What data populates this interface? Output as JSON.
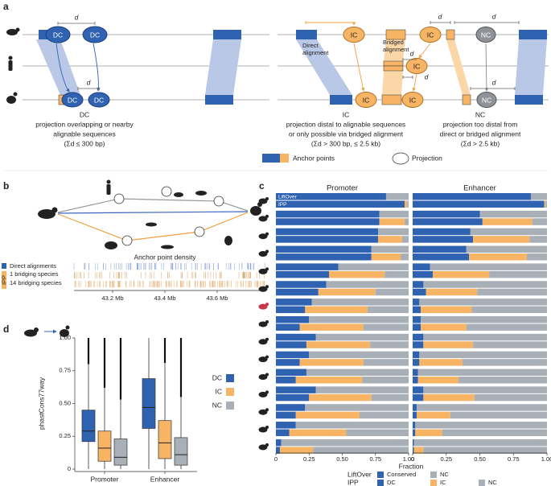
{
  "figure": {
    "panel_a": {
      "label": "a",
      "distance": "d",
      "dc": "DC",
      "ic": "IC",
      "nc": "NC",
      "direct_alignment": [
        "Direct",
        "alignment"
      ],
      "bridged_alignment": [
        "Bridged",
        "alignment"
      ],
      "captions": [
        {
          "title": "DC",
          "lines": [
            "projection overlapping or nearby",
            "alignable sequences",
            "(Σd ≤ 300 bp)"
          ]
        },
        {
          "title": "IC",
          "lines": [
            "projection distal to alignable sequences",
            "or only possible via bridged alignment",
            "(Σd > 300 bp, ≤ 2.5 kb)"
          ]
        },
        {
          "title": "NC",
          "lines": [
            "projection too distal from",
            "direct or bridged alignment",
            "(Σd > 2.5 kb)"
          ]
        }
      ],
      "legend": [
        "Anchor points",
        "Projection"
      ]
    },
    "panel_b": {
      "label": "b",
      "density_title": "Anchor point density",
      "tracks": [
        "Direct alignments",
        "1 bridging species",
        "14 bridging species"
      ],
      "ipp": "IPP",
      "positions": [
        "43.2 Mb",
        "43.4 Mb",
        "43.6 Mb"
      ]
    },
    "panel_c_label": "c",
    "panel_d_label": "d"
  },
  "chart_data": [
    {
      "type": "stacked_bar",
      "xlabel": "Fraction",
      "xlim": [
        0,
        1
      ],
      "xticks": [
        0,
        0.25,
        {
          "value": 0.5,
          "label": "0.50"
        },
        0.75,
        {
          "value": 1,
          "label": "1.00"
        }
      ],
      "facets": [
        {
          "title": "Promoter",
          "stacks": [
            {
              "name": "LiftOver",
              "series": [
                {
                  "name": "Conserved",
                  "color": "#2f62b0",
                  "values": [
                    0.83,
                    0.78,
                    0.77,
                    0.72,
                    0.47,
                    0.38,
                    0.27,
                    0.25,
                    0.3,
                    0.25,
                    0.23,
                    0.3,
                    0.22,
                    0.15,
                    0.04
                  ]
                },
                {
                  "name": "NC",
                  "color": "#a9afb7",
                  "values": [
                    0.17,
                    0.22,
                    0.23,
                    0.28,
                    0.53,
                    0.62,
                    0.73,
                    0.75,
                    0.7,
                    0.75,
                    0.77,
                    0.7,
                    0.78,
                    0.85,
                    0.96
                  ]
                }
              ]
            },
            {
              "name": "IPP",
              "series": [
                {
                  "name": "DC",
                  "color": "#2f62b0",
                  "values": [
                    0.97,
                    0.78,
                    0.77,
                    0.72,
                    0.4,
                    0.32,
                    0.22,
                    0.18,
                    0.23,
                    0.18,
                    0.15,
                    0.25,
                    0.15,
                    0.1,
                    0.03
                  ]
                },
                {
                  "name": "IC",
                  "color": "#f6b464",
                  "values": [
                    0.02,
                    0.19,
                    0.18,
                    0.22,
                    0.42,
                    0.43,
                    0.47,
                    0.48,
                    0.48,
                    0.48,
                    0.5,
                    0.47,
                    0.48,
                    0.43,
                    0.25
                  ]
                },
                {
                  "name": "NC",
                  "color": "#a9afb7",
                  "values": [
                    0.01,
                    0.03,
                    0.05,
                    0.06,
                    0.18,
                    0.25,
                    0.31,
                    0.34,
                    0.29,
                    0.34,
                    0.35,
                    0.28,
                    0.37,
                    0.47,
                    0.72
                  ]
                }
              ]
            }
          ]
        },
        {
          "title": "Enhancer",
          "stacks": [
            {
              "name": "LiftOver",
              "series": [
                {
                  "name": "Conserved",
                  "color": "#2f62b0",
                  "values": [
                    0.88,
                    0.5,
                    0.43,
                    0.4,
                    0.13,
                    0.08,
                    0.05,
                    0.06,
                    0.08,
                    0.05,
                    0.04,
                    0.08,
                    0.03,
                    0.02,
                    0.01
                  ]
                },
                {
                  "name": "NC",
                  "color": "#a9afb7",
                  "values": [
                    0.12,
                    0.5,
                    0.57,
                    0.6,
                    0.87,
                    0.92,
                    0.95,
                    0.94,
                    0.92,
                    0.95,
                    0.96,
                    0.92,
                    0.97,
                    0.98,
                    0.99
                  ]
                }
              ]
            },
            {
              "name": "IPP",
              "series": [
                {
                  "name": "DC",
                  "color": "#2f62b0",
                  "values": [
                    0.98,
                    0.52,
                    0.45,
                    0.42,
                    0.15,
                    0.1,
                    0.06,
                    0.06,
                    0.08,
                    0.05,
                    0.04,
                    0.08,
                    0.03,
                    0.02,
                    0.01
                  ]
                },
                {
                  "name": "IC",
                  "color": "#f6b464",
                  "values": [
                    0.01,
                    0.37,
                    0.42,
                    0.43,
                    0.42,
                    0.38,
                    0.38,
                    0.34,
                    0.37,
                    0.32,
                    0.3,
                    0.38,
                    0.25,
                    0.2,
                    0.07
                  ]
                },
                {
                  "name": "NC",
                  "color": "#a9afb7",
                  "values": [
                    0.01,
                    0.11,
                    0.13,
                    0.15,
                    0.43,
                    0.52,
                    0.56,
                    0.6,
                    0.55,
                    0.63,
                    0.66,
                    0.54,
                    0.72,
                    0.78,
                    0.92
                  ]
                }
              ]
            }
          ]
        }
      ]
    },
    {
      "type": "box",
      "ylabel": "phastCons77way",
      "ylim": [
        0,
        1
      ],
      "yticks": [
        0,
        0.25,
        {
          "value": 0.5,
          "label": "0.50"
        },
        0.75,
        {
          "value": 1,
          "label": "1.00"
        }
      ],
      "categories": [
        "Promoter",
        "Enhancer"
      ],
      "series": [
        {
          "name": "DC",
          "color": "#2f62b0",
          "min": [
            0,
            0
          ],
          "q1": [
            0.21,
            0.31
          ],
          "median": [
            0.29,
            0.47
          ],
          "q3": [
            0.45,
            0.69
          ],
          "max": [
            0.8,
            1.0
          ],
          "outlier_range": [
            [
              0.8,
              1.0
            ],
            null
          ]
        },
        {
          "name": "IC",
          "color": "#f6b464",
          "min": [
            0,
            0
          ],
          "q1": [
            0.06,
            0.08
          ],
          "median": [
            0.16,
            0.2
          ],
          "q3": [
            0.29,
            0.37
          ],
          "max": [
            0.62,
            0.81
          ],
          "outlier_range": [
            [
              0.62,
              1.0
            ],
            [
              0.81,
              1.0
            ]
          ]
        },
        {
          "name": "NC",
          "color": "#a9afb7",
          "min": [
            0,
            0
          ],
          "q1": [
            0.03,
            0.03
          ],
          "median": [
            0.09,
            0.11
          ],
          "q3": [
            0.23,
            0.24
          ],
          "max": [
            0.53,
            0.55
          ],
          "outlier_range": [
            [
              0.53,
              1.0
            ],
            [
              0.55,
              1.0
            ]
          ]
        }
      ]
    }
  ]
}
